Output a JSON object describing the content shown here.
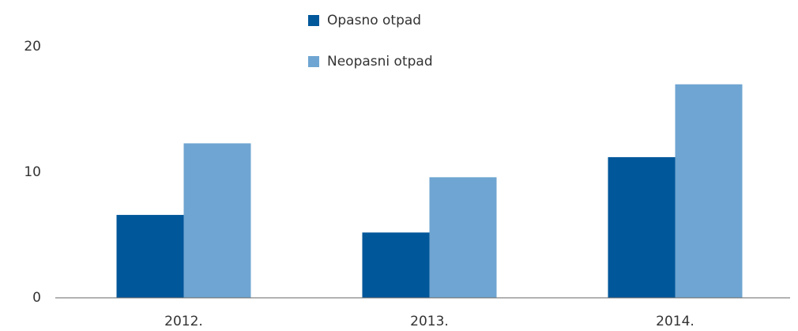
{
  "chart_data": {
    "type": "bar",
    "categories": [
      "2012.",
      "2013.",
      "2014."
    ],
    "series": [
      {
        "name": "Opasno otpad",
        "color": "#00579a",
        "values": [
          6.6,
          5.2,
          11.2
        ]
      },
      {
        "name": "Neopasni otpad",
        "color": "#6fa5d2",
        "values": [
          12.3,
          9.6,
          17.0
        ]
      }
    ],
    "ylim": [
      0,
      20
    ],
    "yticks": [
      0,
      10,
      20
    ],
    "grid": false
  }
}
